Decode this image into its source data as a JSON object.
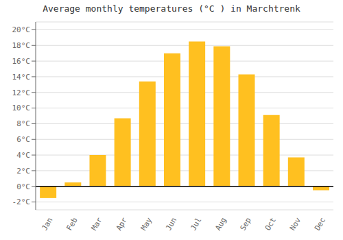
{
  "chart_data": {
    "type": "bar",
    "title": "Average monthly temperatures (°C ) in Marchtrenk",
    "categories": [
      "Jan",
      "Feb",
      "Mar",
      "Apr",
      "May",
      "Jun",
      "Jul",
      "Aug",
      "Sep",
      "Oct",
      "Nov",
      "Dec"
    ],
    "values": [
      -1.5,
      0.5,
      4.0,
      8.7,
      13.4,
      17.0,
      18.5,
      17.9,
      14.3,
      9.1,
      3.7,
      -0.5
    ],
    "color": "#FFC020",
    "ylim": [
      -3,
      21
    ],
    "yticks": [
      {
        "value": -2,
        "label": "-2°C"
      },
      {
        "value": 0,
        "label": "0°C"
      },
      {
        "value": 2,
        "label": "2°C"
      },
      {
        "value": 4,
        "label": "4°C"
      },
      {
        "value": 6,
        "label": "6°C"
      },
      {
        "value": 8,
        "label": "8°C"
      },
      {
        "value": 10,
        "label": "10°C"
      },
      {
        "value": 12,
        "label": "12°C"
      },
      {
        "value": 14,
        "label": "14°C"
      },
      {
        "value": 16,
        "label": "16°C"
      },
      {
        "value": 18,
        "label": "18°C"
      },
      {
        "value": 20,
        "label": "20°C"
      }
    ],
    "grid": true
  }
}
